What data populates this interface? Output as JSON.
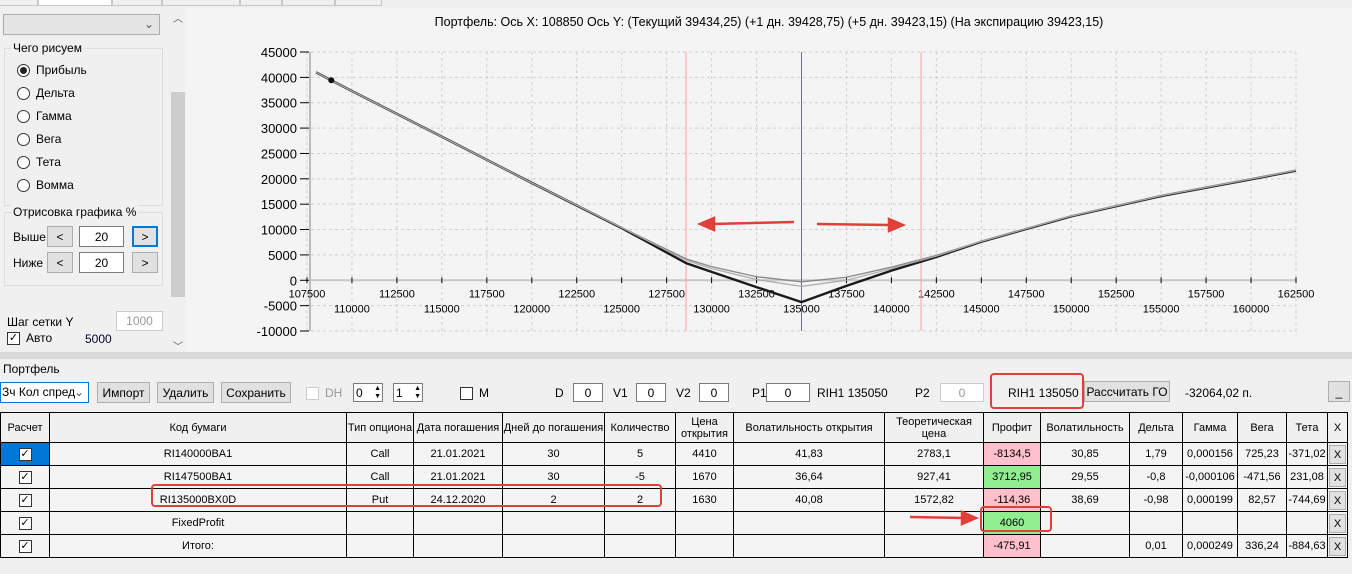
{
  "left_panel": {
    "draw_group": {
      "title": "Чего рисуем",
      "options": [
        "Прибыль",
        "Дельта",
        "Гамма",
        "Вега",
        "Тета",
        "Вомма"
      ],
      "selected": "Прибыль"
    },
    "render_group": {
      "title": "Отрисовка графика %",
      "above_label": "Выше",
      "above_value": "20",
      "below_label": "Ниже",
      "below_value": "20",
      "dec": "<",
      "inc": ">"
    },
    "grid_step_label": "Шаг сетки Y",
    "grid_step_value": "1000",
    "auto_label": "Авто",
    "auto_value": "5000"
  },
  "chart": {
    "title": "Портфель: Ось X: 108850 Ось Y:  (Текущий 39434,25)  (+1 дн. 39428,75)  (+5 дн. 39423,15)  (На экспирацию 39423,15)"
  },
  "chart_data": {
    "type": "line",
    "title": "Портфель: Ось X: 108850 Ось Y:  (Текущий 39434,25)  (+1 дн. 39428,75)  (+5 дн. 39423,15)  (На экспирацию 39423,15)",
    "xlim": [
      107500,
      162500
    ],
    "ylim": [
      -10000,
      45000
    ],
    "xticks_top": [
      107500,
      112500,
      117500,
      122500,
      127500,
      132500,
      137500,
      142500,
      147500,
      152500,
      157500,
      162500
    ],
    "xticks_bottom": [
      110000,
      115000,
      120000,
      125000,
      130000,
      135000,
      140000,
      145000,
      150000,
      155000,
      160000
    ],
    "yticks": [
      45000,
      40000,
      35000,
      30000,
      25000,
      20000,
      15000,
      10000,
      5000,
      0,
      -5000,
      -10000
    ],
    "grid": true,
    "series": [
      {
        "name": "На экспирацию",
        "x": [
          108000,
          110000,
          115000,
          120000,
          125000,
          128600,
          130000,
          132500,
          135000,
          137500,
          140000,
          142500,
          145000,
          150000,
          155000,
          160000,
          162500
        ],
        "y": [
          41000,
          37300,
          28300,
          19200,
          10300,
          3350,
          1650,
          -1350,
          -4300,
          -1100,
          1900,
          4600,
          7600,
          12600,
          16600,
          19900,
          21600
        ]
      },
      {
        "name": "Текущий",
        "x": [
          108000,
          110000,
          115000,
          120000,
          125000,
          128600,
          130000,
          132500,
          135000,
          137500,
          140000,
          142500,
          145000,
          150000,
          155000,
          160000,
          162500
        ],
        "y": [
          41000,
          37300,
          28300,
          19200,
          10400,
          4200,
          2700,
          700,
          -300,
          600,
          2600,
          4900,
          7700,
          12700,
          16700,
          20000,
          21700
        ]
      },
      {
        "name": "+1 дн.",
        "x": [
          108000,
          110000,
          115000,
          120000,
          125000,
          128600,
          130000,
          132500,
          135000,
          137500,
          140000,
          142500,
          145000,
          150000,
          155000,
          160000,
          162500
        ],
        "y": [
          41000,
          37300,
          28300,
          19200,
          10350,
          3900,
          2300,
          150,
          -1200,
          0,
          2300,
          4750,
          7650,
          12650,
          16650,
          19950,
          21650
        ]
      }
    ],
    "marker": {
      "x": 108850,
      "y": 39434.25
    },
    "vlines": {
      "current": 135000,
      "range": [
        128580,
        141650
      ]
    }
  },
  "portfolio": {
    "title": "Портфель",
    "selected": "Зч Кол спред",
    "import": "Импорт",
    "delete": "Удалить",
    "save": "Сохранить",
    "dh_label": "DH",
    "spin1": "0",
    "spin2": "1",
    "m_label": "M",
    "d_label": "D",
    "d_value": "0",
    "v1_label": "V1",
    "v1_value": "0",
    "v2_label": "V2",
    "v2_value": "0",
    "p1_label": "P1",
    "p1_value": "0",
    "p1_code": "RIH1 135050",
    "p2_label": "P2",
    "p2_value": "0",
    "p2_code": "RIH1 135050",
    "calc_go": "Рассчитать ГО",
    "go_value": "-32064,02 п.",
    "min_btn": "_"
  },
  "table": {
    "headers": [
      "Расчет",
      "Код бумаги",
      "Тип опциона",
      "Дата погашения",
      "Дней до погашения",
      "Количество",
      "Цена открытия",
      "Волатильность открытия",
      "Теоретическая цена",
      "Профит",
      "Волатильность",
      "Дельта",
      "Гамма",
      "Вега",
      "Тета",
      "X"
    ],
    "rows": [
      {
        "code": "RI140000BA1",
        "type": "Call",
        "date": "21.01.2021",
        "days": "30",
        "qty": "5",
        "price": "4410",
        "vol_open": "41,83",
        "theo": "2783,1",
        "profit": "-8134,5",
        "vol": "30,85",
        "delta": "1,79",
        "gamma": "0,000156",
        "vega": "725,23",
        "theta": "-371,02",
        "x": "X"
      },
      {
        "code": "RI147500BA1",
        "type": "Call",
        "date": "21.01.2021",
        "days": "30",
        "qty": "-5",
        "price": "1670",
        "vol_open": "36,64",
        "theo": "927,41",
        "profit": "3712,95",
        "vol": "29,55",
        "delta": "-0,8",
        "gamma": "-0,000106",
        "vega": "-471,56",
        "theta": "231,08",
        "x": "X"
      },
      {
        "code": "RI135000BX0D",
        "type": "Put",
        "date": "24.12.2020",
        "days": "2",
        "qty": "2",
        "price": "1630",
        "vol_open": "40,08",
        "theo": "1572,82",
        "profit": "-114,36",
        "vol": "38,69",
        "delta": "-0,98",
        "gamma": "0,000199",
        "vega": "82,57",
        "theta": "-744,69",
        "x": "X"
      },
      {
        "code": "FixedProfit",
        "type": "",
        "date": "",
        "days": "",
        "qty": "",
        "price": "",
        "vol_open": "",
        "theo": "",
        "profit": "4060",
        "vol": "",
        "delta": "",
        "gamma": "",
        "vega": "",
        "theta": "",
        "x": "X"
      },
      {
        "code": "Итого:",
        "type": "",
        "date": "",
        "days": "",
        "qty": "",
        "price": "",
        "vol_open": "",
        "theo": "",
        "profit": "-475,91",
        "vol": "",
        "delta": "0,01",
        "gamma": "0,000249",
        "vega": "336,24",
        "theta": "-884,63",
        "x": "X"
      }
    ]
  },
  "colors": {
    "loss": "#ffc0cb",
    "gain": "#90ee90",
    "annotation": "#e0403a",
    "accent": "#0078d7"
  }
}
